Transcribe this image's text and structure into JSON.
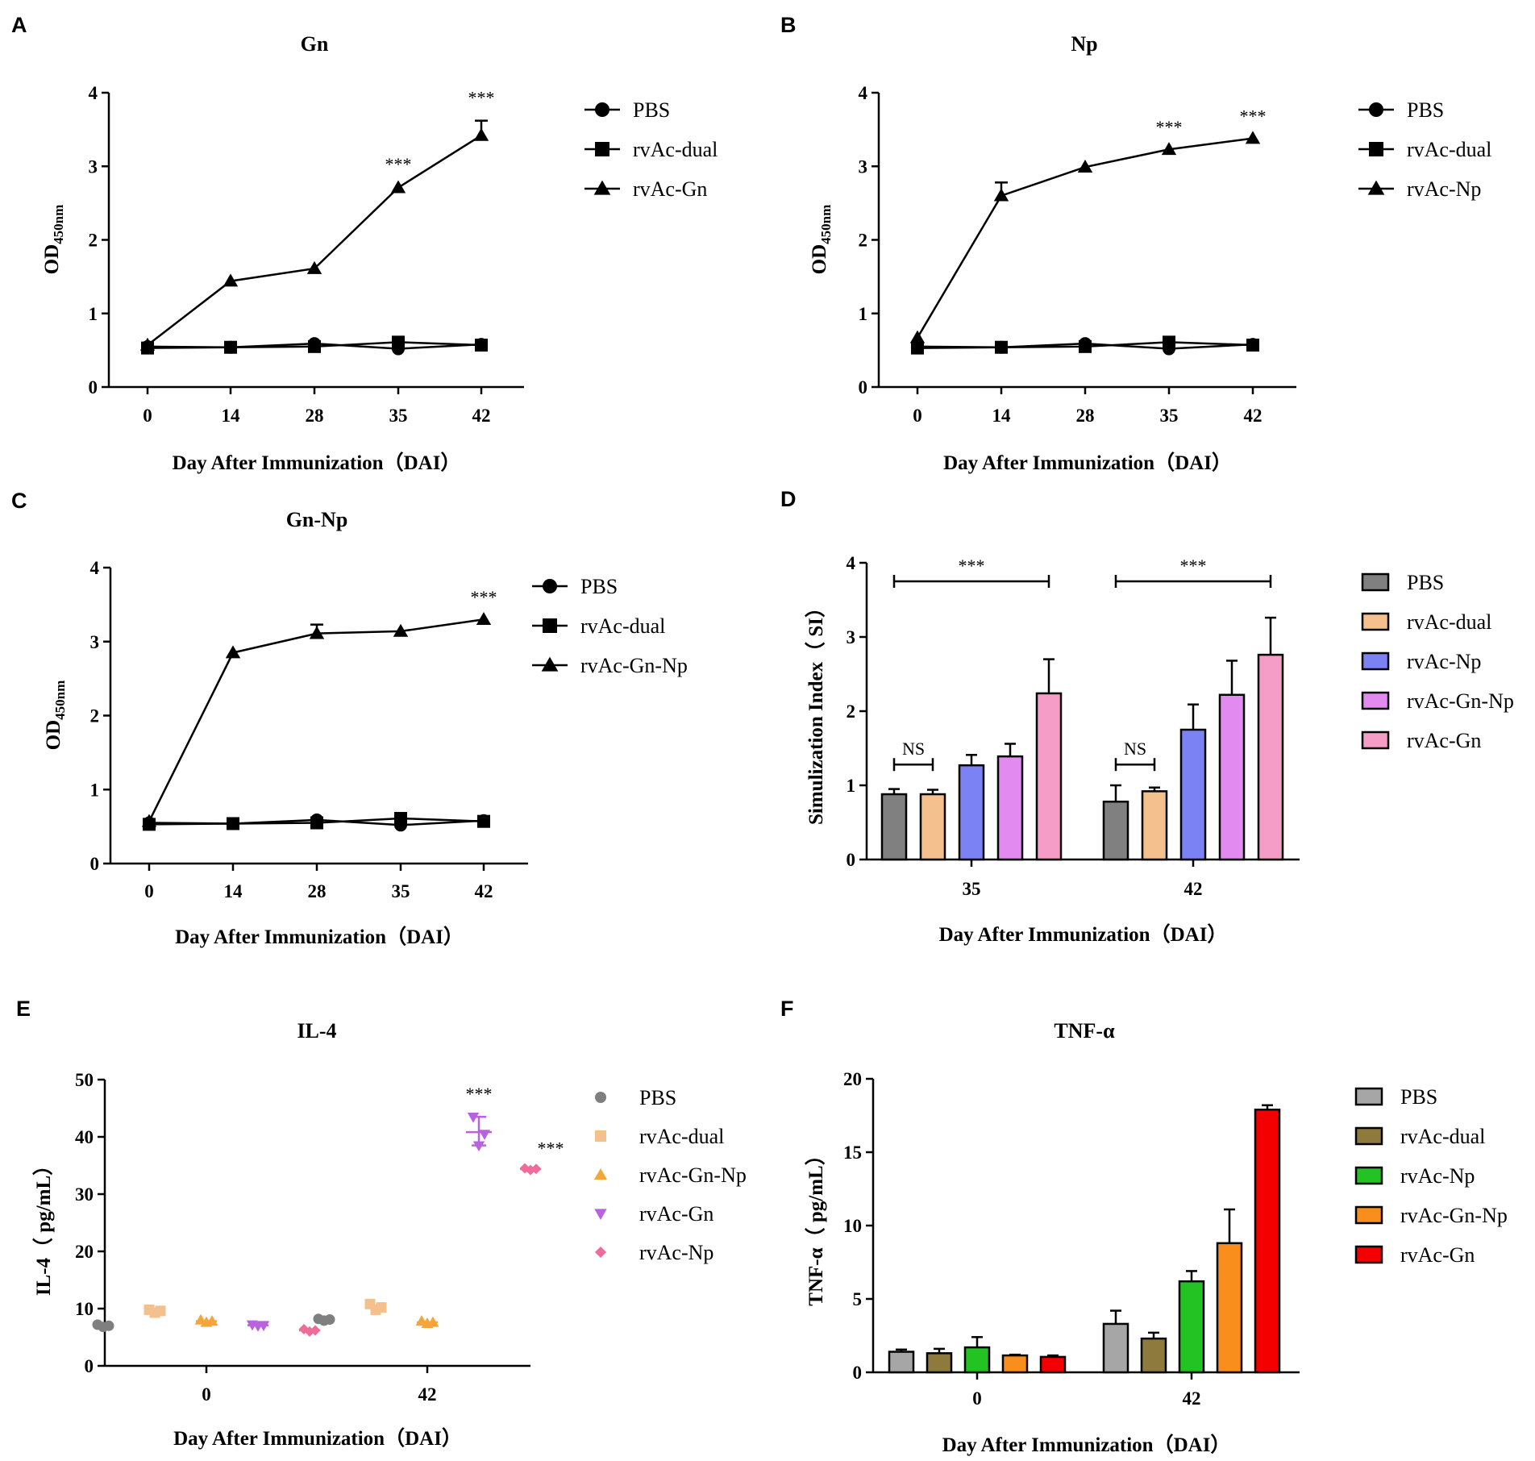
{
  "figure": {
    "panel_letters": [
      "A",
      "B",
      "C",
      "D",
      "E",
      "F"
    ]
  },
  "chart_data": [
    {
      "id": "A",
      "type": "line",
      "title": "Gn",
      "xlabel": "Day After Immunization（DAI）",
      "ylabel": "OD",
      "ylabel_sub": "450nm",
      "categories": [
        "0",
        "14",
        "28",
        "35",
        "42"
      ],
      "ylim": [
        0,
        4
      ],
      "yticks": [
        0,
        1,
        2,
        3,
        4
      ],
      "series": [
        {
          "name": "PBS",
          "marker": "circle",
          "values": [
            0.55,
            0.54,
            0.59,
            0.52,
            0.58
          ],
          "err": [
            0,
            0,
            0,
            0,
            0
          ]
        },
        {
          "name": "rvAc-dual",
          "marker": "square",
          "values": [
            0.53,
            0.54,
            0.55,
            0.61,
            0.57
          ],
          "err": [
            0,
            0,
            0,
            0,
            0
          ]
        },
        {
          "name": "rvAc-Gn",
          "marker": "triangle",
          "values": [
            0.57,
            1.44,
            1.61,
            2.71,
            3.42
          ],
          "err": [
            0,
            0,
            0,
            0,
            0.2
          ]
        }
      ],
      "annotations": [
        {
          "x": "35",
          "text": "***",
          "y": 2.95
        },
        {
          "x": "42",
          "text": "***",
          "y": 3.85
        }
      ]
    },
    {
      "id": "B",
      "type": "line",
      "title": "Np",
      "xlabel": "Day After Immunization（DAI）",
      "ylabel": "OD",
      "ylabel_sub": "450nm",
      "categories": [
        "0",
        "14",
        "28",
        "35",
        "42"
      ],
      "ylim": [
        0,
        4
      ],
      "yticks": [
        0,
        1,
        2,
        3,
        4
      ],
      "series": [
        {
          "name": "PBS",
          "marker": "circle",
          "values": [
            0.55,
            0.54,
            0.59,
            0.52,
            0.58
          ],
          "err": [
            0,
            0,
            0,
            0,
            0
          ]
        },
        {
          "name": "rvAc-dual",
          "marker": "square",
          "values": [
            0.53,
            0.54,
            0.55,
            0.61,
            0.57
          ],
          "err": [
            0,
            0,
            0,
            0,
            0
          ]
        },
        {
          "name": "rvAc-Np",
          "marker": "triangle",
          "values": [
            0.67,
            2.6,
            2.99,
            3.23,
            3.38
          ],
          "err": [
            0,
            0.18,
            0,
            0,
            0
          ]
        }
      ],
      "annotations": [
        {
          "x": "35",
          "text": "***",
          "y": 3.45
        },
        {
          "x": "42",
          "text": "***",
          "y": 3.6
        }
      ]
    },
    {
      "id": "C",
      "type": "line",
      "title": "Gn-Np",
      "xlabel": "Day After Immunization（DAI）",
      "ylabel": "OD",
      "ylabel_sub": "450nm",
      "categories": [
        "0",
        "14",
        "28",
        "35",
        "42"
      ],
      "ylim": [
        0,
        4
      ],
      "yticks": [
        0,
        1,
        2,
        3,
        4
      ],
      "series": [
        {
          "name": "PBS",
          "marker": "circle",
          "values": [
            0.55,
            0.54,
            0.59,
            0.52,
            0.58
          ],
          "err": [
            0,
            0,
            0,
            0,
            0
          ]
        },
        {
          "name": "rvAc-dual",
          "marker": "square",
          "values": [
            0.53,
            0.54,
            0.55,
            0.61,
            0.57
          ],
          "err": [
            0,
            0,
            0,
            0,
            0
          ]
        },
        {
          "name": "rvAc-Gn-Np",
          "marker": "triangle",
          "values": [
            0.57,
            2.85,
            3.11,
            3.14,
            3.3
          ],
          "err": [
            0,
            0,
            0.12,
            0,
            0
          ]
        }
      ],
      "annotations": [
        {
          "x": "42",
          "text": "***",
          "y": 3.52
        }
      ]
    },
    {
      "id": "D",
      "type": "bar",
      "title": "",
      "xlabel": "Day After Immunization（DAI）",
      "ylabel": "Simulization Index（ SI）",
      "categories": [
        "35",
        "42"
      ],
      "ylim": [
        0,
        4
      ],
      "yticks": [
        0,
        1,
        2,
        3,
        4
      ],
      "series": [
        {
          "name": "PBS",
          "color": "#808080",
          "values": [
            0.88,
            0.78
          ],
          "err": [
            0.07,
            0.22
          ]
        },
        {
          "name": "rvAc-dual",
          "color": "#f4c08e",
          "values": [
            0.88,
            0.92
          ],
          "err": [
            0.06,
            0.05
          ]
        },
        {
          "name": "rvAc-Np",
          "color": "#7b82f4",
          "values": [
            1.27,
            1.75
          ],
          "err": [
            0.14,
            0.34
          ]
        },
        {
          "name": "rvAc-Gn-Np",
          "color": "#e28af0",
          "values": [
            1.39,
            2.22
          ],
          "err": [
            0.17,
            0.46
          ]
        },
        {
          "name": "rvAc-Gn",
          "color": "#f59dc6",
          "values": [
            2.24,
            2.76
          ],
          "err": [
            0.46,
            0.5
          ]
        }
      ],
      "brackets": [
        {
          "cat": "35",
          "from": 0,
          "to": 1,
          "label": "NS",
          "y": 1.28
        },
        {
          "cat": "42",
          "from": 0,
          "to": 1,
          "label": "NS",
          "y": 1.28
        },
        {
          "cat": "35",
          "from": 0,
          "to": 4,
          "label": "***",
          "y": 3.75
        },
        {
          "cat": "42",
          "from": 0,
          "to": 4,
          "label": "***",
          "y": 3.75
        }
      ]
    },
    {
      "id": "E",
      "type": "scatter",
      "title": "IL-4",
      "xlabel": "Day After Immunization（DAI）",
      "ylabel": "IL-4（ pg/mL）",
      "categories": [
        "0",
        "42"
      ],
      "ylim": [
        0,
        50
      ],
      "yticks": [
        0,
        10,
        20,
        30,
        40,
        50
      ],
      "series": [
        {
          "name": "PBS",
          "color": "#7f7f7f",
          "marker": "circle",
          "values": [
            [
              7.2,
              6.8,
              7.0
            ],
            [
              8.2,
              7.9,
              8.1
            ]
          ]
        },
        {
          "name": "rvAc-dual",
          "color": "#f4c08e",
          "marker": "square",
          "values": [
            [
              9.8,
              9.3,
              9.6
            ],
            [
              10.8,
              9.8,
              10.2
            ]
          ]
        },
        {
          "name": "rvAc-Gn-Np",
          "color": "#f6a53a",
          "marker": "triangle",
          "values": [
            [
              8.0,
              7.6,
              7.8
            ],
            [
              7.8,
              7.4,
              7.6
            ]
          ]
        },
        {
          "name": "rvAc-Gn",
          "color": "#b862de",
          "marker": "triangle-down",
          "values": [
            [
              7.2,
              7.0,
              7.1
            ],
            [
              43.5,
              38.5,
              40.5
            ]
          ]
        },
        {
          "name": "rvAc-Np",
          "color": "#f06a9a",
          "marker": "diamond",
          "values": [
            [
              6.4,
              6.0,
              6.2
            ],
            [
              34.5,
              34.2,
              34.4
            ]
          ]
        }
      ],
      "annotations": [
        {
          "series": "rvAc-Gn",
          "cat": "42",
          "text": "***",
          "y": 46.5
        },
        {
          "series": "rvAc-Np",
          "cat": "42",
          "text": "***",
          "y": 37
        }
      ]
    },
    {
      "id": "F",
      "type": "bar",
      "title": "TNF-α",
      "xlabel": "Day After Immunization（DAI）",
      "ylabel": "TNF-α（ pg/mL）",
      "categories": [
        "0",
        "42"
      ],
      "ylim": [
        0,
        20
      ],
      "yticks": [
        0,
        5,
        10,
        15,
        20
      ],
      "series": [
        {
          "name": "PBS",
          "color": "#a6a6a6",
          "values": [
            1.4,
            3.3
          ],
          "err": [
            0.15,
            0.9
          ]
        },
        {
          "name": "rvAc-dual",
          "color": "#8d7a3c",
          "values": [
            1.3,
            2.3
          ],
          "err": [
            0.3,
            0.4
          ]
        },
        {
          "name": "rvAc-Np",
          "color": "#22c322",
          "values": [
            1.7,
            6.2
          ],
          "err": [
            0.7,
            0.7
          ]
        },
        {
          "name": "rvAc-Gn-Np",
          "color": "#f98e1c",
          "values": [
            1.15,
            8.8
          ],
          "err": [
            0.05,
            2.3
          ]
        },
        {
          "name": "rvAc-Gn",
          "color": "#f40000",
          "values": [
            1.05,
            17.9
          ],
          "err": [
            0.1,
            0.3
          ]
        }
      ]
    }
  ]
}
